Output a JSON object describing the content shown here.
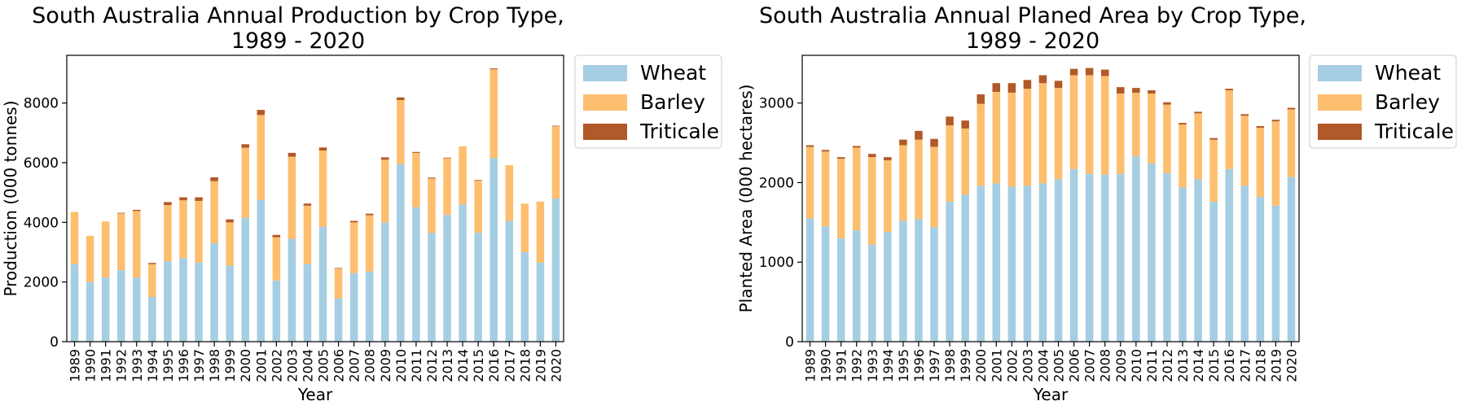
{
  "colors": {
    "wheat": "#a6cee3",
    "barley": "#fdbf6f",
    "triticale": "#b15928"
  },
  "chart_data": [
    {
      "type": "bar",
      "stacked": true,
      "title_line1": "South Australia Annual Production by Crop Type,",
      "title_line2": "1989 - 2020",
      "xlabel": "Year",
      "ylabel": "Production (000 tonnes)",
      "ylim": [
        0,
        9600
      ],
      "yticks": [
        0,
        2000,
        4000,
        6000,
        8000
      ],
      "legend_position": "outside-right-top",
      "categories": [
        "1989",
        "1990",
        "1991",
        "1992",
        "1993",
        "1994",
        "1995",
        "1996",
        "1997",
        "1998",
        "1999",
        "2000",
        "2001",
        "2002",
        "2003",
        "2004",
        "2005",
        "2006",
        "2007",
        "2008",
        "2009",
        "2010",
        "2011",
        "2012",
        "2013",
        "2014",
        "2015",
        "2016",
        "2017",
        "2018",
        "2019",
        "2020"
      ],
      "series": [
        {
          "name": "Wheat",
          "values": [
            2600,
            2000,
            2150,
            2400,
            2150,
            1500,
            2700,
            2800,
            2650,
            3300,
            2550,
            4150,
            4750,
            2050,
            3450,
            2600,
            3850,
            1450,
            2300,
            2350,
            4000,
            5950,
            4500,
            3650,
            4250,
            4600,
            3650,
            6150,
            4050,
            3000,
            2650,
            4800
          ]
        },
        {
          "name": "Barley",
          "values": [
            1750,
            1550,
            1880,
            1900,
            2230,
            1100,
            1880,
            1940,
            2070,
            2080,
            1450,
            2350,
            2850,
            1450,
            2750,
            1960,
            2560,
            1000,
            1700,
            1890,
            2100,
            2150,
            1830,
            1820,
            1900,
            1950,
            1750,
            2980,
            1870,
            1630,
            2050,
            2420
          ]
        },
        {
          "name": "Triticale",
          "values": [
            0,
            0,
            0,
            20,
            40,
            40,
            100,
            100,
            120,
            130,
            100,
            120,
            170,
            80,
            130,
            70,
            100,
            20,
            50,
            50,
            80,
            90,
            30,
            30,
            20,
            0,
            20,
            30,
            0,
            0,
            0,
            20
          ]
        }
      ]
    },
    {
      "type": "bar",
      "stacked": true,
      "title_line1": "South Australia Annual Planed Area by Crop Type,",
      "title_line2": "1989 - 2020",
      "xlabel": "Year",
      "ylabel": "Planted Area (000 hectares)",
      "ylim": [
        0,
        3600
      ],
      "yticks": [
        0,
        1000,
        2000,
        3000
      ],
      "legend_position": "outside-right-top",
      "categories": [
        "1989",
        "1990",
        "1991",
        "1992",
        "1993",
        "1994",
        "1995",
        "1996",
        "1997",
        "1998",
        "1999",
        "2000",
        "2001",
        "2002",
        "2003",
        "2004",
        "2005",
        "2006",
        "2007",
        "2008",
        "2009",
        "2010",
        "2011",
        "2012",
        "2013",
        "2014",
        "2015",
        "2016",
        "2017",
        "2018",
        "2019",
        "2020"
      ],
      "series": [
        {
          "name": "Wheat",
          "values": [
            1550,
            1450,
            1300,
            1400,
            1220,
            1380,
            1520,
            1540,
            1440,
            1760,
            1850,
            1960,
            1990,
            1950,
            1960,
            1990,
            2040,
            2170,
            2110,
            2100,
            2110,
            2330,
            2240,
            2120,
            1940,
            2040,
            1760,
            2170,
            1960,
            1820,
            1710,
            2070
          ]
        },
        {
          "name": "Barley",
          "values": [
            900,
            940,
            1000,
            1040,
            1100,
            900,
            950,
            1000,
            1010,
            960,
            830,
            1030,
            1150,
            1180,
            1220,
            1260,
            1150,
            1180,
            1240,
            1240,
            1010,
            800,
            880,
            860,
            790,
            830,
            780,
            990,
            880,
            870,
            1060,
            850
          ]
        },
        {
          "name": "Triticale",
          "values": [
            20,
            20,
            20,
            20,
            40,
            40,
            70,
            110,
            100,
            110,
            100,
            120,
            110,
            120,
            110,
            100,
            90,
            80,
            90,
            80,
            80,
            60,
            40,
            30,
            20,
            20,
            20,
            20,
            20,
            20,
            20,
            20
          ]
        }
      ]
    }
  ]
}
